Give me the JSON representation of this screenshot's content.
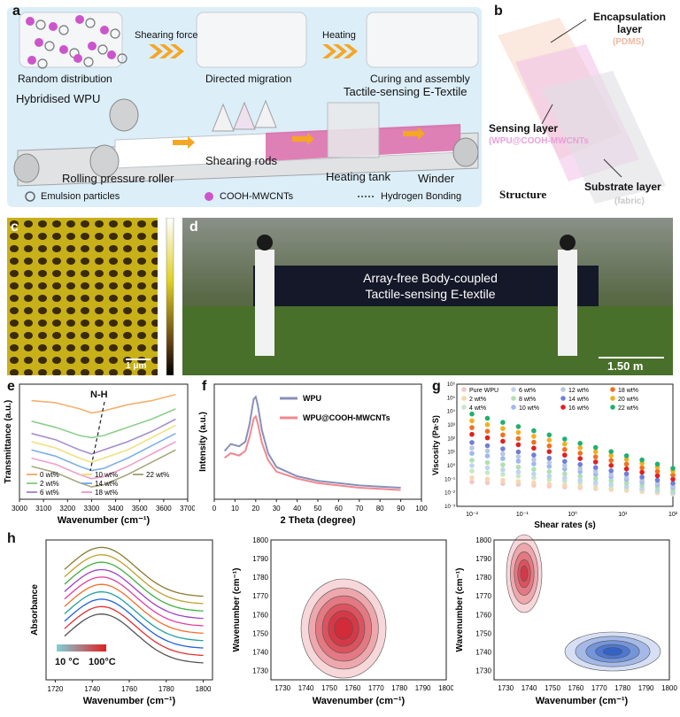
{
  "panels": {
    "a": {
      "letter": "a",
      "stages": [
        "Random distribution",
        "Directed migration",
        "Curing and assembly"
      ],
      "arrow_labels": [
        "Shearing force",
        "Heating"
      ],
      "product": "Tactile-sensing E-Textile",
      "input": "Hybridised WPU",
      "machine_parts": [
        "Rolling pressure roller",
        "Shearing rods",
        "Heating tank",
        "Winder"
      ],
      "legend": [
        "Emulsion particles",
        "COOH-MWCNTs",
        "Hydrogen Bonding"
      ]
    },
    "b": {
      "letter": "b",
      "layers": [
        {
          "name": "Encapsulation layer",
          "material": "(PDMS)"
        },
        {
          "name": "Sensing layer",
          "material": "(WPU@COOH-MWCNTs"
        },
        {
          "name": "Substrate layer",
          "material": "(fabric)"
        }
      ],
      "caption": "Structure"
    },
    "c": {
      "letter": "c",
      "scale": "1 μm"
    },
    "d": {
      "letter": "d",
      "banner_line1": "Array-free Body-coupled",
      "banner_line2": "Tactile-sensing E-textile",
      "scale": "1.50 m"
    },
    "e": {
      "letter": "e",
      "annotation": "N-H"
    },
    "f": {
      "letter": "f"
    },
    "g": {
      "letter": "g"
    },
    "h": {
      "letter": "h",
      "temp_low": "10 °C",
      "temp_high": "100°C"
    }
  },
  "colors": {
    "panel_a_bg": "#dceef8",
    "cnt_magenta": "#cc55cc",
    "textile_pink": "#d86aa8",
    "contour_red": "#d02030",
    "contour_blue": "#1a4fc0",
    "afm_yellow": "#e0d020"
  },
  "chart_data": [
    {
      "type": "line",
      "panel": "e",
      "xlabel": "Wavenumber (cm⁻¹)",
      "ylabel": "Transmittance (a.u.)",
      "xlim": [
        3000,
        3700
      ],
      "xticks": [
        3000,
        3100,
        3200,
        3300,
        3400,
        3500,
        3600,
        3700
      ],
      "x": [
        3050,
        3150,
        3250,
        3300,
        3350,
        3450,
        3550,
        3650
      ],
      "series": [
        {
          "name": "0 wt%",
          "color": "#f5b070",
          "values": [
            8.6,
            8.5,
            8.2,
            8.0,
            8.1,
            8.4,
            8.6,
            8.9
          ]
        },
        {
          "name": "2 wt%",
          "color": "#8ecf8e",
          "values": [
            7.6,
            7.3,
            6.9,
            6.8,
            6.9,
            7.3,
            7.7,
            8.2
          ]
        },
        {
          "name": "6 wt%",
          "color": "#a48fd0",
          "values": [
            7.0,
            6.7,
            6.2,
            6.0,
            6.2,
            6.6,
            7.1,
            7.7
          ]
        },
        {
          "name": "10 wt%",
          "color": "#f0e080",
          "values": [
            6.6,
            6.3,
            5.8,
            5.6,
            5.8,
            6.2,
            6.8,
            7.4
          ]
        },
        {
          "name": "14 wt%",
          "color": "#80b0e8",
          "values": [
            6.2,
            5.9,
            5.4,
            5.2,
            5.3,
            5.8,
            6.4,
            7.0
          ]
        },
        {
          "name": "18 wt%",
          "color": "#f0a0c8",
          "values": [
            5.8,
            5.5,
            5.0,
            4.8,
            4.9,
            5.4,
            6.0,
            6.6
          ]
        },
        {
          "name": "22 wt%",
          "color": "#a8a880",
          "values": [
            5.4,
            5.1,
            4.6,
            4.4,
            4.5,
            5.0,
            5.6,
            6.2
          ]
        }
      ]
    },
    {
      "type": "line",
      "panel": "f",
      "xlabel": "2 Theta (degree)",
      "ylabel": "Intensity (a.u.)",
      "xlim": [
        0,
        100
      ],
      "xticks": [
        0,
        10,
        20,
        30,
        40,
        50,
        60,
        70,
        80,
        90,
        100
      ],
      "x": [
        5,
        8,
        12,
        15,
        17,
        19,
        20,
        21,
        23,
        26,
        30,
        40,
        50,
        60,
        70,
        80,
        90
      ],
      "series": [
        {
          "name": "WPU",
          "color": "#8890b8",
          "values": [
            4.2,
            4.8,
            4.6,
            5.0,
            6.5,
            8.7,
            8.9,
            8.2,
            6.0,
            4.0,
            2.8,
            2.0,
            1.6,
            1.4,
            1.2,
            1.1,
            1.0
          ]
        },
        {
          "name": "WPU@COOH-MWCNTs",
          "color": "#f08890",
          "values": [
            3.6,
            4.0,
            3.8,
            4.2,
            5.4,
            7.0,
            7.2,
            6.6,
            4.9,
            3.4,
            2.4,
            1.8,
            1.4,
            1.2,
            1.0,
            0.9,
            0.8
          ]
        }
      ]
    },
    {
      "type": "scatter",
      "panel": "g",
      "xlabel": "Shear rates (s)",
      "ylabel": "Viscosity (Pa·S)",
      "xscale": "log",
      "yscale": "log",
      "xticks": [
        "10⁻²",
        "10⁻¹",
        "10⁰",
        "10¹",
        "10²"
      ],
      "yticks": [
        "10⁻³",
        "10⁻²",
        "10⁻¹",
        "10⁰",
        "10¹",
        "10²",
        "10³",
        "10⁴",
        "10⁵",
        "10⁶"
      ],
      "series": [
        {
          "name": "Pure WPU",
          "color": "#f3c8c8",
          "start_log": -1.2,
          "slope": -0.08
        },
        {
          "name": "2 wt%",
          "color": "#f5d8b0",
          "start_log": -0.9,
          "slope": -0.12
        },
        {
          "name": "4 wt%",
          "color": "#c8e6c8",
          "start_log": -0.4,
          "slope": -0.16
        },
        {
          "name": "6 wt%",
          "color": "#c0d4f0",
          "start_log": 0.0,
          "slope": -0.2
        },
        {
          "name": "8 wt%",
          "color": "#b0e0b0",
          "start_log": 0.4,
          "slope": -0.22
        },
        {
          "name": "10 wt%",
          "color": "#a0b8f0",
          "start_log": 0.9,
          "slope": -0.25
        },
        {
          "name": "12 wt%",
          "color": "#b8c8e0",
          "start_log": 1.3,
          "slope": -0.28
        },
        {
          "name": "14 wt%",
          "color": "#7080d8",
          "start_log": 1.7,
          "slope": -0.3
        },
        {
          "name": "16 wt%",
          "color": "#e02020",
          "start_log": 2.3,
          "slope": -0.33
        },
        {
          "name": "18 wt%",
          "color": "#f07020",
          "start_log": 2.8,
          "slope": -0.35
        },
        {
          "name": "20 wt%",
          "color": "#f0b020",
          "start_log": 3.3,
          "slope": -0.37
        },
        {
          "name": "22 wt%",
          "color": "#20b070",
          "start_log": 3.8,
          "slope": -0.4
        }
      ]
    },
    {
      "type": "line",
      "panel": "h-left",
      "xlabel": "Wavenumber (cm⁻¹)",
      "ylabel": "Absorbance",
      "xlim": [
        1715,
        1805
      ],
      "xticks": [
        1720,
        1740,
        1760,
        1780,
        1800
      ],
      "series_count": 10
    },
    {
      "type": "heatmap",
      "panel": "h-middle",
      "xlabel": "Wavenumber (cm⁻¹)",
      "ylabel": "Wavenumber (cm⁻¹)",
      "xticks": [
        1730,
        1740,
        1750,
        1760,
        1770,
        1780,
        1790,
        1800
      ],
      "yticks": [
        1730,
        1740,
        1750,
        1760,
        1770,
        1780,
        1790,
        1800
      ],
      "peak": [
        1758,
        1758
      ]
    },
    {
      "type": "heatmap",
      "panel": "h-right",
      "xlabel": "Wavenumber (cm⁻¹)",
      "ylabel": "Wavenumber (cm⁻¹)",
      "xticks": [
        "1730",
        "1740",
        "1750",
        "1760",
        "1770",
        "1780",
        "1790",
        "1800"
      ],
      "yticks": [
        1730,
        1740,
        1750,
        1760,
        1770,
        1780,
        1790,
        1800
      ],
      "peaks": [
        [
          1740,
          1775
        ],
        [
          1775,
          1740
        ]
      ]
    }
  ]
}
